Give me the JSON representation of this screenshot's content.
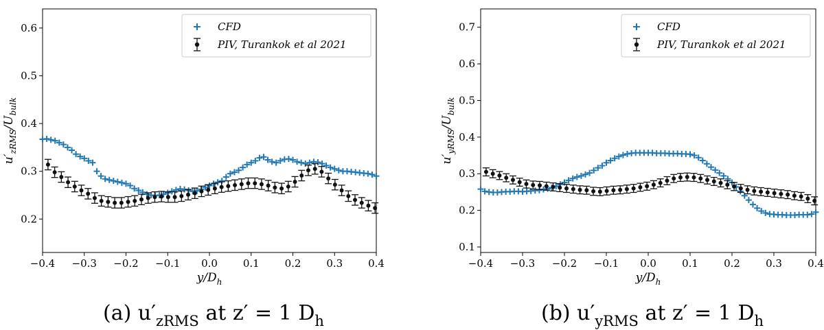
{
  "colors": {
    "cfd": "#1f77b4",
    "piv": "#111111"
  },
  "chart_data": [
    {
      "type": "scatter",
      "caption": "(a) u′zRMS at z′ = 1 Dh",
      "xlabel": "y/Dh",
      "ylabel": "u′zRMS/Ubulk",
      "xlim": [
        -0.4,
        0.4
      ],
      "ylim": [
        0.13,
        0.64
      ],
      "xticks": [
        "−0.4",
        "−0.3",
        "−0.2",
        "−0.1",
        "0.0",
        "0.1",
        "0.2",
        "0.3",
        "0.4"
      ],
      "yticks": [
        "0.2",
        "0.3",
        "0.4",
        "0.5",
        "0.6"
      ],
      "legend_position": "top-right",
      "series": [
        {
          "name": "CFD",
          "marker": "plus",
          "x": [
            -0.4,
            -0.39,
            -0.38,
            -0.37,
            -0.36,
            -0.35,
            -0.34,
            -0.33,
            -0.32,
            -0.31,
            -0.3,
            -0.29,
            -0.28,
            -0.27,
            -0.26,
            -0.25,
            -0.24,
            -0.23,
            -0.22,
            -0.21,
            -0.2,
            -0.19,
            -0.18,
            -0.17,
            -0.16,
            -0.15,
            -0.14,
            -0.13,
            -0.12,
            -0.11,
            -0.1,
            -0.09,
            -0.08,
            -0.07,
            -0.06,
            -0.05,
            -0.04,
            -0.03,
            -0.02,
            -0.01,
            0.0,
            0.01,
            0.02,
            0.03,
            0.04,
            0.05,
            0.06,
            0.07,
            0.08,
            0.09,
            0.1,
            0.11,
            0.12,
            0.13,
            0.14,
            0.15,
            0.16,
            0.17,
            0.18,
            0.19,
            0.2,
            0.21,
            0.22,
            0.23,
            0.24,
            0.25,
            0.26,
            0.27,
            0.28,
            0.29,
            0.3,
            0.31,
            0.32,
            0.33,
            0.34,
            0.35,
            0.36,
            0.37,
            0.38,
            0.39,
            0.4
          ],
          "y": [
            0.367,
            0.368,
            0.366,
            0.364,
            0.36,
            0.356,
            0.35,
            0.344,
            0.336,
            0.331,
            0.327,
            0.322,
            0.318,
            0.3,
            0.29,
            0.284,
            0.282,
            0.28,
            0.278,
            0.276,
            0.274,
            0.27,
            0.264,
            0.26,
            0.256,
            0.252,
            0.25,
            0.249,
            0.25,
            0.252,
            0.255,
            0.258,
            0.261,
            0.263,
            0.262,
            0.26,
            0.258,
            0.259,
            0.262,
            0.266,
            0.27,
            0.274,
            0.277,
            0.28,
            0.288,
            0.295,
            0.298,
            0.302,
            0.308,
            0.314,
            0.318,
            0.322,
            0.328,
            0.33,
            0.324,
            0.32,
            0.318,
            0.322,
            0.325,
            0.326,
            0.324,
            0.32,
            0.318,
            0.316,
            0.318,
            0.32,
            0.319,
            0.316,
            0.312,
            0.308,
            0.305,
            0.302,
            0.3,
            0.3,
            0.299,
            0.298,
            0.297,
            0.296,
            0.295,
            0.293,
            0.29
          ]
        },
        {
          "name": "PIV, Turankok et al 2021",
          "marker": "errorbar",
          "error": 0.011,
          "x": [
            -0.387,
            -0.371,
            -0.355,
            -0.339,
            -0.323,
            -0.307,
            -0.291,
            -0.275,
            -0.259,
            -0.243,
            -0.227,
            -0.211,
            -0.195,
            -0.179,
            -0.163,
            -0.147,
            -0.131,
            -0.115,
            -0.099,
            -0.083,
            -0.067,
            -0.051,
            -0.035,
            -0.019,
            -0.003,
            0.013,
            0.029,
            0.045,
            0.061,
            0.077,
            0.093,
            0.109,
            0.125,
            0.141,
            0.157,
            0.173,
            0.189,
            0.205,
            0.221,
            0.237,
            0.253,
            0.269,
            0.285,
            0.301,
            0.317,
            0.333,
            0.349,
            0.365,
            0.381,
            0.397
          ],
          "y": [
            0.314,
            0.298,
            0.288,
            0.277,
            0.268,
            0.26,
            0.253,
            0.244,
            0.238,
            0.236,
            0.234,
            0.234,
            0.236,
            0.238,
            0.241,
            0.244,
            0.246,
            0.247,
            0.246,
            0.246,
            0.248,
            0.251,
            0.254,
            0.258,
            0.261,
            0.264,
            0.267,
            0.269,
            0.271,
            0.273,
            0.275,
            0.275,
            0.273,
            0.27,
            0.266,
            0.264,
            0.268,
            0.278,
            0.291,
            0.302,
            0.305,
            0.299,
            0.285,
            0.272,
            0.26,
            0.248,
            0.24,
            0.234,
            0.228,
            0.223
          ]
        }
      ]
    },
    {
      "type": "scatter",
      "caption": "(b) u′yRMS at z′ = 1 Dh",
      "xlabel": "y/Dh",
      "ylabel": "u′yRMS/Ubulk",
      "xlim": [
        -0.4,
        0.4
      ],
      "ylim": [
        0.085,
        0.75
      ],
      "xticks": [
        "−0.4",
        "−0.3",
        "−0.2",
        "−0.1",
        "0.0",
        "0.1",
        "0.2",
        "0.3",
        "0.4"
      ],
      "yticks": [
        "0.1",
        "0.2",
        "0.3",
        "0.4",
        "0.5",
        "0.6",
        "0.7"
      ],
      "legend_position": "top-right",
      "series": [
        {
          "name": "CFD",
          "marker": "plus",
          "x": [
            -0.4,
            -0.39,
            -0.38,
            -0.37,
            -0.36,
            -0.35,
            -0.34,
            -0.33,
            -0.32,
            -0.31,
            -0.3,
            -0.29,
            -0.28,
            -0.27,
            -0.26,
            -0.25,
            -0.24,
            -0.23,
            -0.22,
            -0.21,
            -0.2,
            -0.19,
            -0.18,
            -0.17,
            -0.16,
            -0.15,
            -0.14,
            -0.13,
            -0.12,
            -0.11,
            -0.1,
            -0.09,
            -0.08,
            -0.07,
            -0.06,
            -0.05,
            -0.04,
            -0.03,
            -0.02,
            -0.01,
            0.0,
            0.01,
            0.02,
            0.03,
            0.04,
            0.05,
            0.06,
            0.07,
            0.08,
            0.09,
            0.1,
            0.11,
            0.12,
            0.13,
            0.14,
            0.15,
            0.16,
            0.17,
            0.18,
            0.19,
            0.2,
            0.21,
            0.22,
            0.23,
            0.24,
            0.25,
            0.26,
            0.27,
            0.28,
            0.29,
            0.3,
            0.31,
            0.32,
            0.33,
            0.34,
            0.35,
            0.36,
            0.37,
            0.38,
            0.39,
            0.4
          ],
          "y": [
            0.258,
            0.252,
            0.25,
            0.249,
            0.249,
            0.25,
            0.251,
            0.251,
            0.252,
            0.252,
            0.251,
            0.252,
            0.253,
            0.254,
            0.255,
            0.257,
            0.259,
            0.262,
            0.266,
            0.271,
            0.276,
            0.282,
            0.287,
            0.291,
            0.294,
            0.298,
            0.302,
            0.309,
            0.316,
            0.322,
            0.33,
            0.336,
            0.342,
            0.347,
            0.351,
            0.354,
            0.356,
            0.357,
            0.357,
            0.357,
            0.357,
            0.357,
            0.356,
            0.356,
            0.356,
            0.355,
            0.355,
            0.355,
            0.354,
            0.354,
            0.353,
            0.35,
            0.344,
            0.336,
            0.327,
            0.318,
            0.31,
            0.302,
            0.294,
            0.286,
            0.276,
            0.264,
            0.252,
            0.24,
            0.228,
            0.216,
            0.206,
            0.198,
            0.193,
            0.19,
            0.189,
            0.188,
            0.188,
            0.187,
            0.187,
            0.187,
            0.188,
            0.188,
            0.188,
            0.19,
            0.195
          ]
        },
        {
          "name": "PIV, Turankok et al 2021",
          "marker": "errorbar",
          "error": 0.011,
          "x": [
            -0.387,
            -0.371,
            -0.355,
            -0.339,
            -0.323,
            -0.307,
            -0.291,
            -0.275,
            -0.259,
            -0.243,
            -0.227,
            -0.211,
            -0.195,
            -0.179,
            -0.163,
            -0.147,
            -0.131,
            -0.115,
            -0.099,
            -0.083,
            -0.067,
            -0.051,
            -0.035,
            -0.019,
            -0.003,
            0.013,
            0.029,
            0.045,
            0.061,
            0.077,
            0.093,
            0.109,
            0.125,
            0.141,
            0.157,
            0.173,
            0.189,
            0.205,
            0.221,
            0.237,
            0.253,
            0.269,
            0.285,
            0.301,
            0.317,
            0.333,
            0.349,
            0.365,
            0.381,
            0.397
          ],
          "y": [
            0.305,
            0.3,
            0.295,
            0.289,
            0.283,
            0.277,
            0.272,
            0.269,
            0.268,
            0.266,
            0.264,
            0.262,
            0.26,
            0.258,
            0.256,
            0.255,
            0.252,
            0.251,
            0.253,
            0.255,
            0.256,
            0.258,
            0.26,
            0.263,
            0.266,
            0.27,
            0.275,
            0.281,
            0.287,
            0.29,
            0.291,
            0.29,
            0.287,
            0.283,
            0.279,
            0.275,
            0.27,
            0.265,
            0.26,
            0.256,
            0.253,
            0.251,
            0.249,
            0.247,
            0.245,
            0.243,
            0.24,
            0.238,
            0.232,
            0.226
          ]
        }
      ]
    }
  ]
}
